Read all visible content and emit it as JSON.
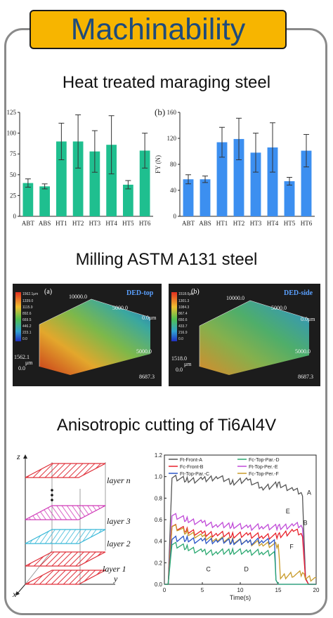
{
  "title": "Machinability",
  "sections": {
    "s1": "Heat treated maraging steel",
    "s2": "Milling ASTM A131 steel",
    "s3": "Anisotropic cutting of Ti6Al4V"
  },
  "chart_data": [
    {
      "type": "bar",
      "categories": [
        "ABT",
        "ABS",
        "HT1",
        "HT2",
        "HT3",
        "HT4",
        "HT5",
        "HT6"
      ],
      "values": [
        40,
        36,
        90,
        90,
        78,
        86,
        38,
        79
      ],
      "errors": [
        5,
        3,
        22,
        32,
        25,
        35,
        5,
        21
      ],
      "color": "#1fbf8f",
      "yticks": [
        "0",
        "25",
        "50",
        "75",
        "100",
        "125"
      ],
      "ylim": [
        0,
        125
      ]
    },
    {
      "type": "bar",
      "panel_label": "(b)",
      "categories": [
        "ABT",
        "ABS",
        "HT1",
        "HT2",
        "HT3",
        "HT4",
        "HT5",
        "HT6"
      ],
      "values": [
        57,
        57,
        114,
        119,
        98,
        106,
        54,
        101
      ],
      "errors": [
        7,
        5,
        23,
        32,
        30,
        38,
        6,
        25
      ],
      "color": "#3c8ff0",
      "ylabel": "FY (N)",
      "yticks": [
        "0",
        "40",
        "80",
        "120",
        "160"
      ],
      "ylim": [
        0,
        160
      ]
    },
    {
      "type": "line",
      "xlabel": "Time(s)",
      "xticks": [
        "0",
        "5",
        "10",
        "15",
        "20"
      ],
      "yticks": [
        "0.0",
        "0.2",
        "0.4",
        "0.6",
        "0.8",
        "1.0",
        "1.2"
      ],
      "xlim": [
        0,
        20
      ],
      "ylim": [
        0,
        1.2
      ],
      "legend": [
        "Ft-Front-A",
        "Fc-Front-B",
        "Ft-Top-Par.-C",
        "Fc-Top-Par.-D",
        "Ft-Top-Per.-E",
        "Fc-Top-Per.-F"
      ],
      "annotations": [
        "A",
        "B",
        "C",
        "D",
        "E",
        "F"
      ],
      "series": [
        {
          "name": "Ft-Front-A",
          "color": "#555555",
          "x": [
            0,
            0.5,
            1,
            3,
            5,
            7,
            9,
            11,
            13,
            15,
            17,
            18.2,
            18.6,
            19,
            20
          ],
          "values": [
            0,
            0,
            1.0,
            0.97,
            0.97,
            1.0,
            0.95,
            0.97,
            0.9,
            0.93,
            0.88,
            0.85,
            0.06,
            0,
            0
          ]
        },
        {
          "name": "Fc-Front-B",
          "color": "#e8202a",
          "x": [
            0,
            0.5,
            1,
            3,
            5,
            7,
            9,
            11,
            13,
            15,
            17,
            18.2,
            18.6,
            19,
            20
          ],
          "values": [
            0,
            0,
            0.55,
            0.5,
            0.47,
            0.47,
            0.46,
            0.46,
            0.45,
            0.45,
            0.5,
            0.47,
            0.05,
            0,
            0
          ]
        },
        {
          "name": "Ft-Top-Par.-C",
          "color": "#2a55c8",
          "x": [
            0,
            0.5,
            1,
            3,
            5,
            7,
            9,
            11,
            13,
            14.5,
            14.7,
            15,
            20
          ],
          "values": [
            0,
            0,
            0.43,
            0.42,
            0.4,
            0.41,
            0.4,
            0.39,
            0.41,
            0.4,
            0.04,
            0,
            0
          ]
        },
        {
          "name": "Fc-Top-Par.-D",
          "color": "#2aa870",
          "x": [
            0,
            0.5,
            1,
            3,
            5,
            7,
            9,
            11,
            13,
            14.5,
            14.7,
            15,
            20
          ],
          "values": [
            0,
            0,
            0.38,
            0.34,
            0.3,
            0.3,
            0.31,
            0.3,
            0.3,
            0.29,
            0.04,
            0,
            0
          ]
        },
        {
          "name": "Ft-Top-Per.-E",
          "color": "#c04ad8",
          "x": [
            0,
            0.5,
            1,
            3,
            5,
            7,
            9,
            11,
            13,
            15,
            17,
            18.2,
            18.6,
            19,
            20
          ],
          "values": [
            0,
            0,
            0.65,
            0.6,
            0.57,
            0.55,
            0.55,
            0.53,
            0.54,
            0.53,
            0.55,
            0.55,
            0.05,
            0,
            0
          ]
        },
        {
          "name": "Fc-Top-Per.-F",
          "color": "#c89a28",
          "x": [
            0,
            0.5,
            1,
            3,
            5,
            7,
            9,
            11,
            13,
            15,
            15.3,
            17,
            18.2,
            18.6,
            20
          ],
          "values": [
            0,
            0,
            0.55,
            0.48,
            0.44,
            0.42,
            0.41,
            0.39,
            0.38,
            0.36,
            0.06,
            0.1,
            0.1,
            0.06,
            0.06
          ]
        }
      ]
    }
  ],
  "images": {
    "a": {
      "panel": "(a)",
      "tag": "DED-top",
      "dims": [
        "10000.0",
        "5000.0",
        "0.0μm",
        "5000.0",
        "8687.3"
      ],
      "zlabels": [
        "1562.1",
        "μm",
        "0.0"
      ],
      "colorbar": [
        "1562.1μm",
        "1339.0",
        "1115.9",
        "892.6",
        "669.5",
        "446.2",
        "223.1",
        "0.0"
      ]
    },
    "b": {
      "panel": "(b)",
      "tag": "DED-side",
      "dims": [
        "10000.0",
        "5000.0",
        "0.0μm",
        "5000.0",
        "8687.3"
      ],
      "zlabels": [
        "1518.0",
        "μm",
        "0.0"
      ],
      "colorbar": [
        "1518.0μm",
        "1301.3",
        "1084.3",
        "867.4",
        "650.6",
        "433.7",
        "216.9",
        "0.0"
      ]
    }
  },
  "layers_diagram": {
    "axes": [
      "z",
      "y",
      "x"
    ],
    "labels": [
      "layer n",
      "layer 3",
      "layer 2",
      "layer 1"
    ]
  }
}
